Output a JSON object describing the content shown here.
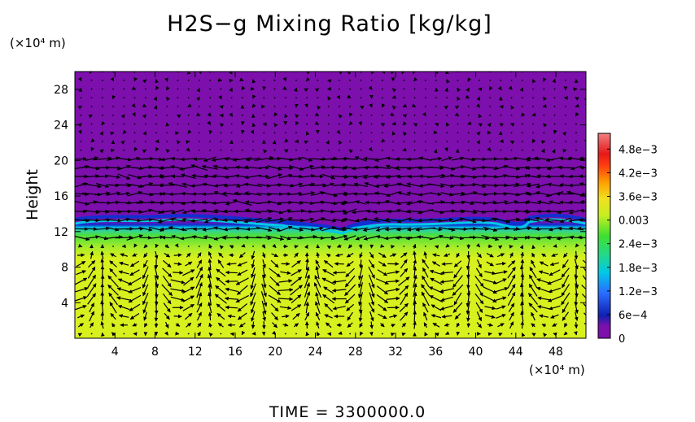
{
  "chart_data": {
    "type": "heatmap",
    "title": "H2S−g Mixing Ratio [kg/kg]",
    "ylabel": "Height",
    "y_unit": "(×10⁴ m)",
    "x_unit": "(×10⁴ m)",
    "xlim": [
      0,
      51
    ],
    "ylim": [
      0,
      30
    ],
    "x_ticks": [
      "4",
      "8",
      "12",
      "16",
      "20",
      "24",
      "28",
      "32",
      "36",
      "40",
      "44",
      "48"
    ],
    "y_ticks": [
      "4",
      "8",
      "12",
      "16",
      "20",
      "24",
      "28"
    ],
    "colorbar": {
      "min": 0,
      "max": 0.0052,
      "labels": [
        "0",
        "6e−4",
        "1.2e−3",
        "1.8e−3",
        "2.4e−3",
        "0.003",
        "3.6e−3",
        "4.2e−3",
        "4.8e−3"
      ],
      "values": [
        0,
        0.0006,
        0.0012,
        0.0018,
        0.0024,
        0.003,
        0.0036,
        0.0042,
        0.0048
      ]
    },
    "field": {
      "lower_layer_value": 0.0035,
      "transition_value": 0.0029,
      "upper_value": 0,
      "interface_height": 12.7
    },
    "time_label": "TIME  =  3300000.0",
    "colors": {
      "lower": "#d8f01e",
      "mid_green": "#3fdc3a",
      "cyan": "#00c8e8",
      "blue": "#1030d0",
      "upper": "#7d0fad"
    }
  }
}
